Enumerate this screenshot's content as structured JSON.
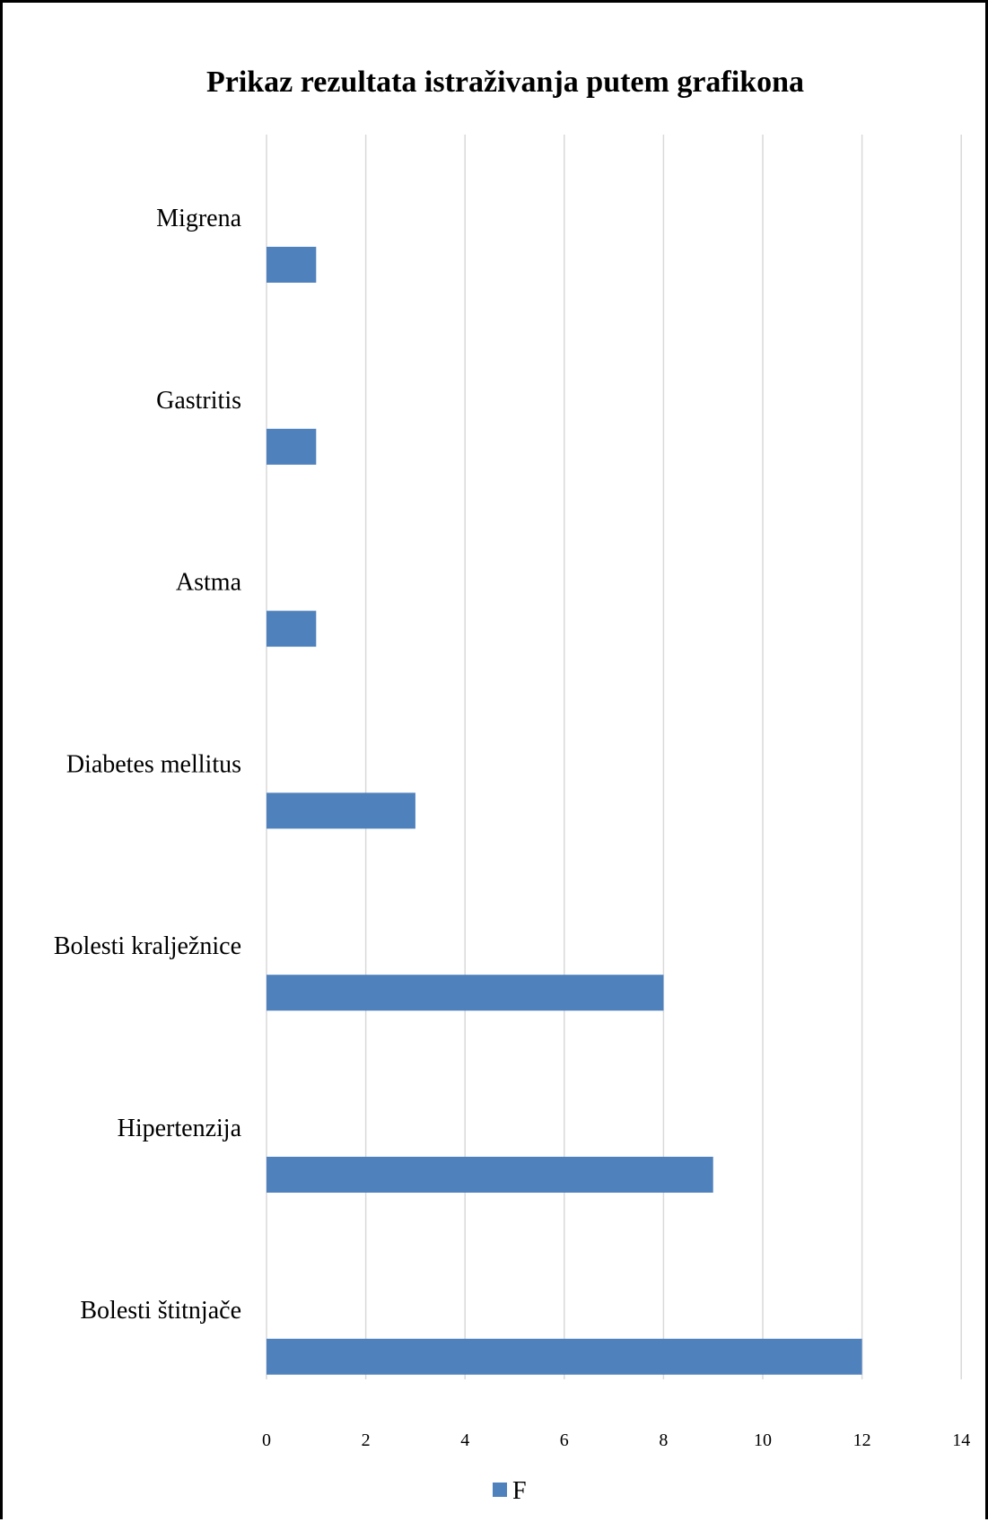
{
  "chart_data": {
    "type": "bar",
    "orientation": "horizontal",
    "title": "Prikaz rezultata istraživanja putem grafikona",
    "xlabel": "",
    "ylabel": "",
    "categories": [
      "Migrena",
      "Gastritis",
      "Astma",
      "Diabetes mellitus",
      "Bolesti kralježnice",
      "Hipertenzija",
      "Bolesti štitnjače"
    ],
    "series": [
      {
        "name": "F",
        "values": [
          1,
          1,
          1,
          3,
          8,
          9,
          12
        ],
        "color": "#4f81bd"
      }
    ],
    "xlim": [
      0,
      14
    ],
    "xticks": [
      0,
      2,
      4,
      6,
      8,
      10,
      12,
      14
    ],
    "grid": "vertical",
    "legend_position": "bottom",
    "colors": {
      "gridline": "#d9d9d9",
      "frame": "#000000"
    }
  }
}
